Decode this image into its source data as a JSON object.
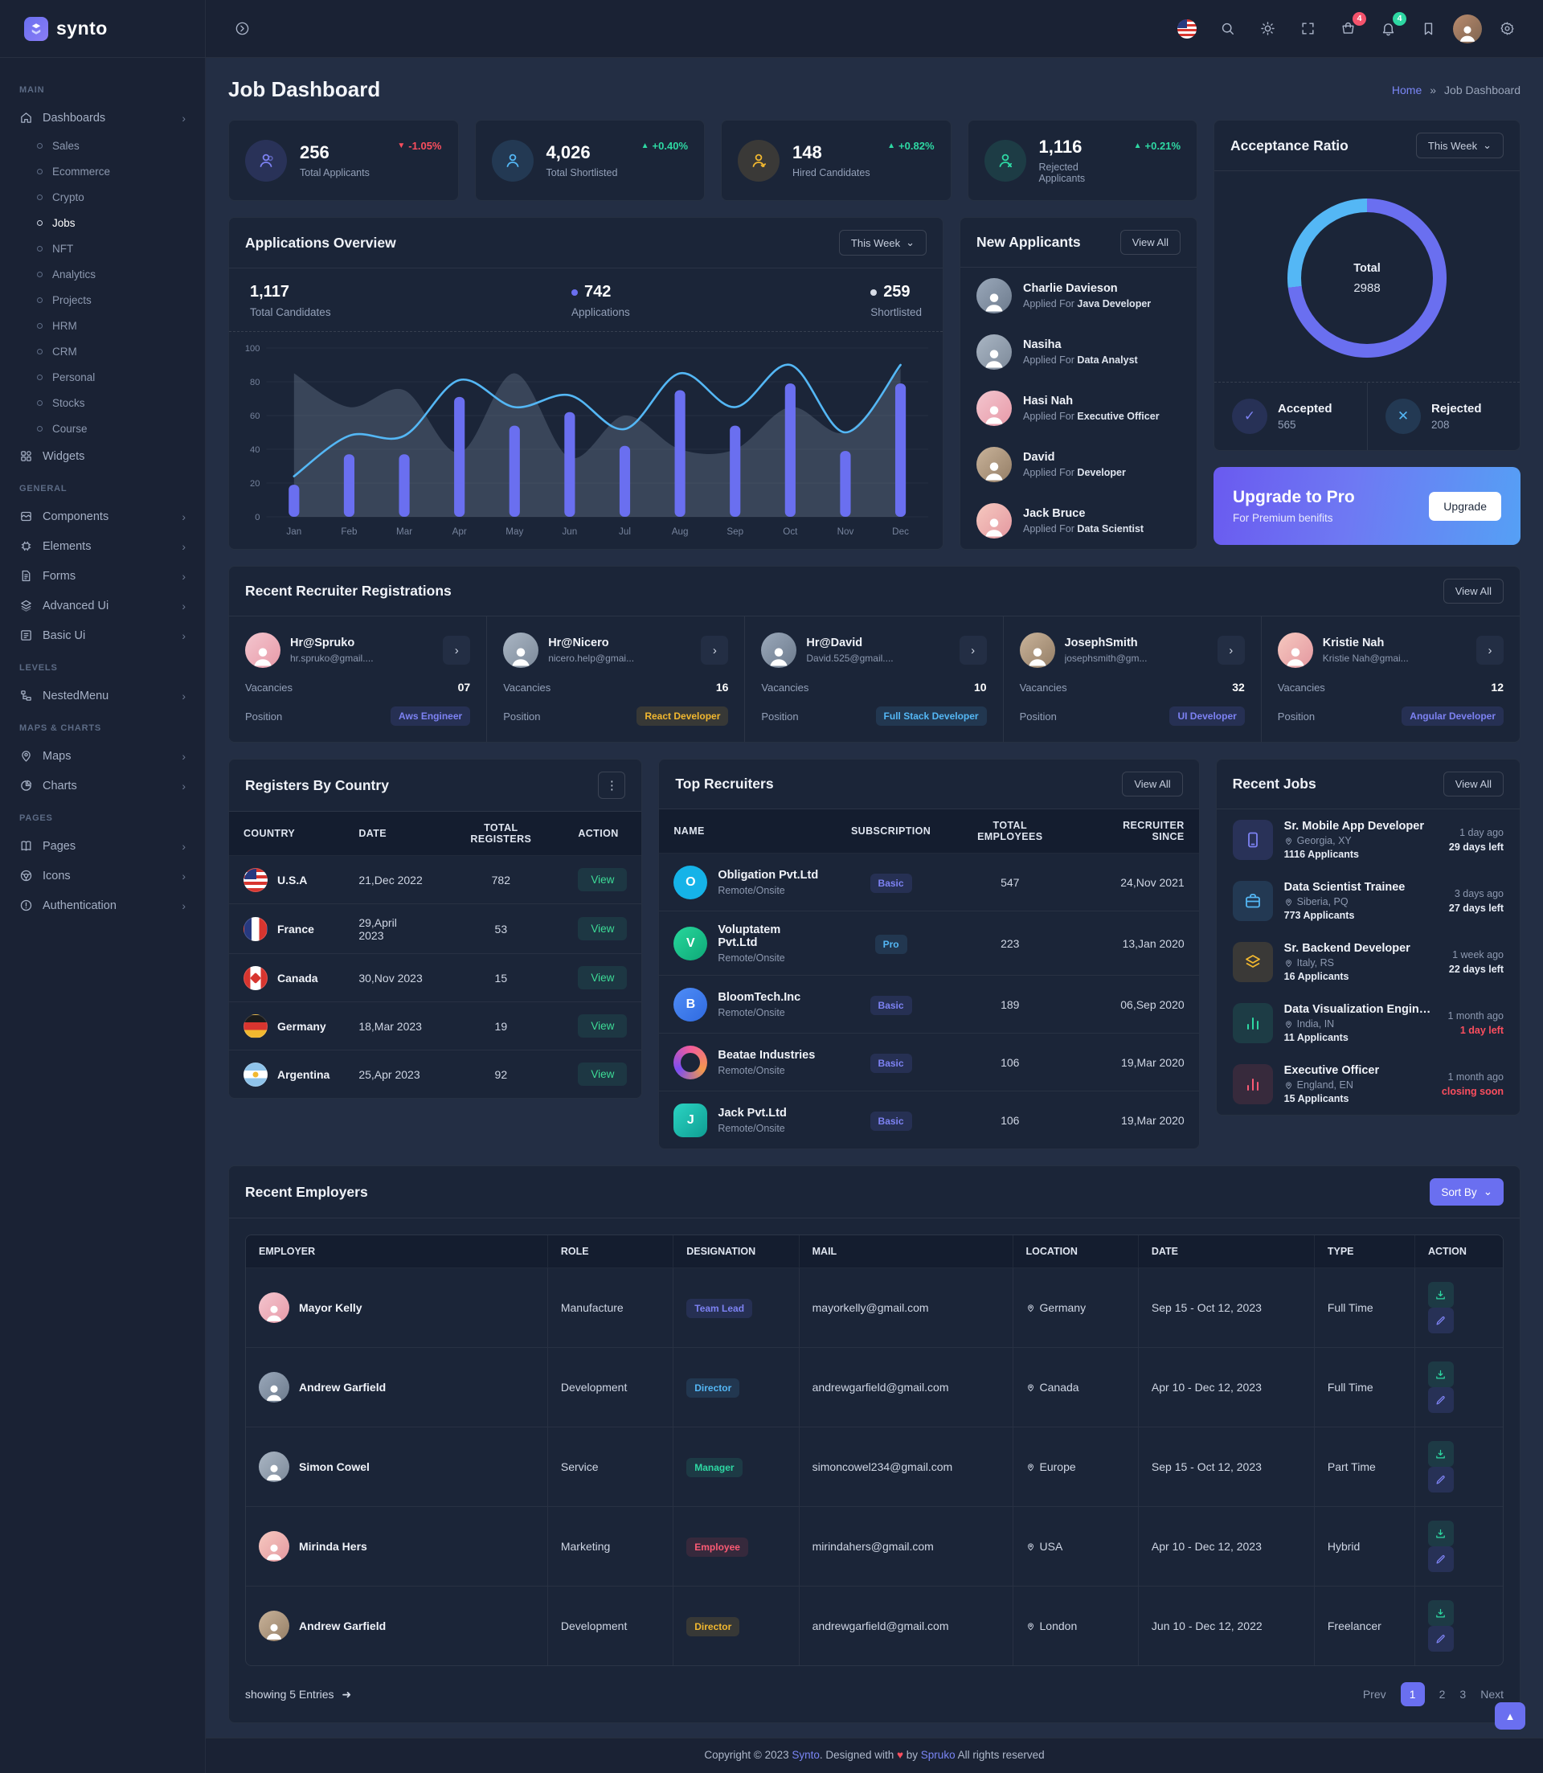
{
  "brand": {
    "name": "synto"
  },
  "topbar": {
    "cart_badge": "4",
    "notification_badge": "4"
  },
  "page": {
    "title": "Job Dashboard",
    "breadcrumb_home": "Home",
    "breadcrumb_sep": "»",
    "breadcrumb_current": "Job Dashboard"
  },
  "sidebar": {
    "section_main": "MAIN",
    "dashboards_label": "Dashboards",
    "dashboard_items": [
      "Sales",
      "Ecommerce",
      "Crypto",
      "Jobs",
      "NFT",
      "Analytics",
      "Projects",
      "HRM",
      "CRM",
      "Personal",
      "Stocks",
      "Course"
    ],
    "widgets_label": "Widgets",
    "section_general": "GENERAL",
    "general_items": [
      "Components",
      "Elements",
      "Forms",
      "Advanced Ui",
      "Basic Ui"
    ],
    "section_levels": "LEVELS",
    "levels_items": [
      "NestedMenu"
    ],
    "section_maps": "MAPS & CHARTS",
    "maps_items": [
      "Maps",
      "Charts"
    ],
    "section_pages": "PAGES",
    "pages_items": [
      "Pages",
      "Icons",
      "Authentication"
    ]
  },
  "stats": [
    {
      "value": "256",
      "label": "Total Applicants",
      "delta": "-1.05%",
      "direction": "down"
    },
    {
      "value": "4,026",
      "label": "Total Shortlisted",
      "delta": "+0.40%",
      "direction": "up"
    },
    {
      "value": "148",
      "label": "Hired Candidates",
      "delta": "+0.82%",
      "direction": "up"
    },
    {
      "value": "1,116",
      "label": "Rejected Applicants",
      "delta": "+0.21%",
      "direction": "up"
    }
  ],
  "applications_overview": {
    "title": "Applications Overview",
    "period": "This Week",
    "stats": [
      {
        "value": "1,117",
        "label": "Total Candidates"
      },
      {
        "value": "742",
        "label": "Applications"
      },
      {
        "value": "259",
        "label": "Shortlisted"
      }
    ]
  },
  "chart_data": [
    {
      "type": "bar",
      "title": "Applications Overview",
      "categories": [
        "Jan",
        "Feb",
        "Mar",
        "Apr",
        "May",
        "Jun",
        "Jul",
        "Aug",
        "Sep",
        "Oct",
        "Nov",
        "Dec"
      ],
      "series": [
        {
          "name": "Applications",
          "type": "bar",
          "color": "#6a6ff0",
          "values": [
            19,
            37,
            37,
            71,
            54,
            62,
            42,
            75,
            54,
            79,
            39,
            79
          ]
        },
        {
          "name": "Shortlisted",
          "type": "line",
          "color": "#54b7f5",
          "values": [
            24,
            48,
            48,
            81,
            65,
            72,
            52,
            85,
            65,
            90,
            50,
            90
          ]
        },
        {
          "name": "Total Candidates",
          "type": "area",
          "color": "rgba(130,145,165,0.30)",
          "values": [
            85,
            65,
            75,
            38,
            85,
            35,
            60,
            40,
            40,
            65,
            50,
            88
          ]
        }
      ],
      "xlabel": "",
      "ylabel": "",
      "ylim": [
        0,
        100
      ],
      "yticks": [
        0,
        20,
        40,
        60,
        80,
        100
      ],
      "grid": true,
      "legend_position": "top"
    },
    {
      "type": "pie",
      "title": "Acceptance Ratio",
      "labels": [
        "Accepted",
        "Rejected"
      ],
      "values": [
        565,
        208
      ],
      "colors": [
        "#6a6ff0",
        "#54b7f5"
      ],
      "center_label": "Total",
      "center_value": "2988"
    }
  ],
  "new_applicants": {
    "title": "New Applicants",
    "view_all": "View All",
    "applied_prefix": "Applied For",
    "items": [
      {
        "name": "Charlie Davieson",
        "role": "Java Developer"
      },
      {
        "name": "Nasiha",
        "role": "Data Analyst"
      },
      {
        "name": "Hasi Nah",
        "role": "Executive Officer"
      },
      {
        "name": "David",
        "role": "Developer"
      },
      {
        "name": "Jack Bruce",
        "role": "Data Scientist"
      }
    ]
  },
  "acceptance": {
    "title": "Acceptance Ratio",
    "period": "This Week",
    "total_label": "Total",
    "total_value": "2988",
    "accepted_label": "Accepted",
    "accepted_value": "565",
    "rejected_label": "Rejected",
    "rejected_value": "208"
  },
  "upgrade": {
    "title": "Upgrade to Pro",
    "subtitle": "For Premium benifits",
    "button": "Upgrade"
  },
  "recruiters": {
    "title": "Recent Recruiter Registrations",
    "view_all": "View All",
    "labels": {
      "vacancies": "Vacancies",
      "position": "Position"
    },
    "cards": [
      {
        "name": "Hr@Spruko",
        "email": "hr.spruko@gmail....",
        "vacancies": "07",
        "position": "Aws Engineer"
      },
      {
        "name": "Hr@Nicero",
        "email": "nicero.help@gmai...",
        "vacancies": "16",
        "position": "React Developer"
      },
      {
        "name": "Hr@David",
        "email": "David.525@gmail....",
        "vacancies": "10",
        "position": "Full Stack Developer"
      },
      {
        "name": "JosephSmith",
        "email": "josephsmith@gm...",
        "vacancies": "32",
        "position": "UI Developer"
      },
      {
        "name": "Kristie Nah",
        "email": "Kristie Nah@gmai...",
        "vacancies": "12",
        "position": "Angular Developer"
      }
    ]
  },
  "registers": {
    "title": "Registers By Country",
    "headers": [
      "COUNTRY",
      "DATE",
      "TOTAL REGISTERS",
      "ACTION"
    ],
    "rows": [
      {
        "country": "U.S.A",
        "date": "21,Dec 2022",
        "total": "782",
        "action": "View"
      },
      {
        "country": "France",
        "date": "29,April 2023",
        "total": "53",
        "action": "View"
      },
      {
        "country": "Canada",
        "date": "30,Nov 2023",
        "total": "15",
        "action": "View"
      },
      {
        "country": "Germany",
        "date": "18,Mar 2023",
        "total": "19",
        "action": "View"
      },
      {
        "country": "Argentina",
        "date": "25,Apr 2023",
        "total": "92",
        "action": "View"
      }
    ]
  },
  "top_recruiters": {
    "title": "Top Recruiters",
    "view_all": "View All",
    "headers": [
      "NAME",
      "SUBSCRIPTION",
      "TOTAL EMPLOYEES",
      "RECRUITER SINCE"
    ],
    "rows": [
      {
        "name": "Obligation Pvt.Ltd",
        "mode": "Remote/Onsite",
        "plan": "Basic",
        "employees": "547",
        "since": "24,Nov 2021"
      },
      {
        "name": "Voluptatem Pvt.Ltd",
        "mode": "Remote/Onsite",
        "plan": "Pro",
        "employees": "223",
        "since": "13,Jan 2020"
      },
      {
        "name": "BloomTech.Inc",
        "mode": "Remote/Onsite",
        "plan": "Basic",
        "employees": "189",
        "since": "06,Sep 2020"
      },
      {
        "name": "Beatae Industries",
        "mode": "Remote/Onsite",
        "plan": "Basic",
        "employees": "106",
        "since": "19,Mar 2020"
      },
      {
        "name": "Jack Pvt.Ltd",
        "mode": "Remote/Onsite",
        "plan": "Basic",
        "employees": "106",
        "since": "19,Mar 2020"
      }
    ]
  },
  "recent_jobs": {
    "title": "Recent Jobs",
    "view_all": "View All",
    "items": [
      {
        "title": "Sr. Mobile App Developer",
        "location": "Georgia, XY",
        "applicants": "1116 Applicants",
        "posted": "1 day ago",
        "left": "29 days left"
      },
      {
        "title": "Data Scientist Trainee",
        "location": "Siberia, PQ",
        "applicants": "773 Applicants",
        "posted": "3 days ago",
        "left": "27 days left"
      },
      {
        "title": "Sr. Backend Developer",
        "location": "Italy, RS",
        "applicants": "16 Applicants",
        "posted": "1 week ago",
        "left": "22 days left"
      },
      {
        "title": "Data Visualization Engineer",
        "location": "India, IN",
        "applicants": "11 Applicants",
        "posted": "1 month ago",
        "left": "1 day left"
      },
      {
        "title": "Executive Officer",
        "location": "England, EN",
        "applicants": "15 Applicants",
        "posted": "1 month ago",
        "left": "closing soon"
      }
    ]
  },
  "employers": {
    "title": "Recent Employers",
    "sort_by": "Sort By",
    "headers": [
      "EMPLOYER",
      "ROLE",
      "DESIGNATION",
      "MAIL",
      "LOCATION",
      "DATE",
      "TYPE",
      "ACTION"
    ],
    "rows": [
      {
        "name": "Mayor Kelly",
        "role": "Manufacture",
        "designation": "Team Lead",
        "mail": "mayorkelly@gmail.com",
        "location": "Germany",
        "date": "Sep 15 - Oct 12, 2023",
        "type": "Full Time"
      },
      {
        "name": "Andrew Garfield",
        "role": "Development",
        "designation": "Director",
        "mail": "andrewgarfield@gmail.com",
        "location": "Canada",
        "date": "Apr 10 - Dec 12, 2023",
        "type": "Full Time"
      },
      {
        "name": "Simon Cowel",
        "role": "Service",
        "designation": "Manager",
        "mail": "simoncowel234@gmail.com",
        "location": "Europe",
        "date": "Sep 15 - Oct 12, 2023",
        "type": "Part Time"
      },
      {
        "name": "Mirinda Hers",
        "role": "Marketing",
        "designation": "Employee",
        "mail": "mirindahers@gmail.com",
        "location": "USA",
        "date": "Apr 10 - Dec 12, 2023",
        "type": "Hybrid"
      },
      {
        "name": "Andrew Garfield",
        "role": "Development",
        "designation": "Director",
        "mail": "andrewgarfield@gmail.com",
        "location": "London",
        "date": "Jun 10 - Dec 12, 2022",
        "type": "Freelancer"
      }
    ],
    "footer": {
      "showing": "showing 5 Entries",
      "prev": "Prev",
      "pages": [
        "1",
        "2",
        "3"
      ],
      "next": "Next"
    }
  },
  "footer": {
    "prefix": "Copyright © 2023",
    "brand": "Synto",
    "mid": ". Designed with",
    "heart": "♥",
    "by": "by",
    "author": "Spruko",
    "suffix": "All rights reserved"
  }
}
